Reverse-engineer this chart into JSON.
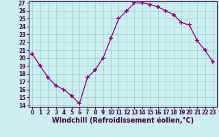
{
  "xlabel": "Windchill (Refroidissement éolien,°C)",
  "x": [
    0,
    1,
    2,
    3,
    4,
    5,
    6,
    7,
    8,
    9,
    10,
    11,
    12,
    13,
    14,
    15,
    16,
    17,
    18,
    19,
    20,
    21,
    22,
    23
  ],
  "y": [
    20.5,
    19.0,
    17.5,
    16.5,
    16.0,
    15.2,
    14.2,
    17.5,
    18.5,
    20.0,
    22.5,
    25.0,
    26.0,
    27.0,
    27.0,
    26.8,
    26.5,
    26.0,
    25.5,
    24.5,
    24.2,
    22.2,
    21.0,
    19.5
  ],
  "line_color": "#880088",
  "marker": "+",
  "marker_size": 4,
  "marker_lw": 1.2,
  "line_width": 1.0,
  "bg_color": "#cceeee",
  "grid_color": "#99cccc",
  "ylim": [
    14,
    27
  ],
  "xlim": [
    -0.5,
    23.5
  ],
  "yticks": [
    14,
    15,
    16,
    17,
    18,
    19,
    20,
    21,
    22,
    23,
    24,
    25,
    26,
    27
  ],
  "xticks": [
    0,
    1,
    2,
    3,
    4,
    5,
    6,
    7,
    8,
    9,
    10,
    11,
    12,
    13,
    14,
    15,
    16,
    17,
    18,
    19,
    20,
    21,
    22,
    23
  ],
  "tick_label_fontsize": 5.5,
  "xlabel_fontsize": 7,
  "spine_color": "#440044"
}
